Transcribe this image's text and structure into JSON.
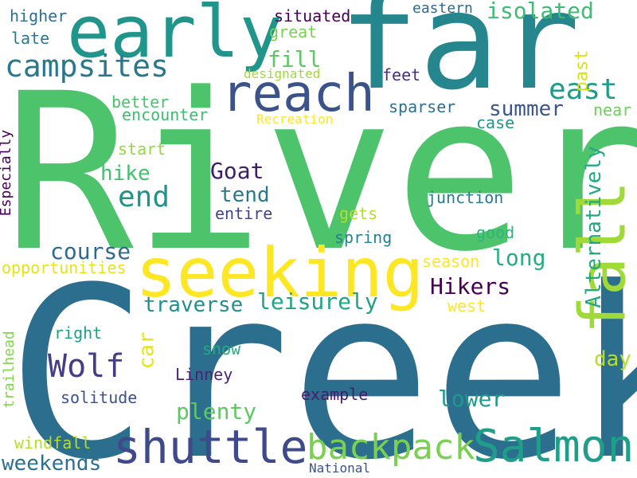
{
  "cloud": {
    "words": [
      {
        "text": "River",
        "color": "#4dc36b"
      },
      {
        "text": "Creek",
        "color": "#2c6e8e"
      },
      {
        "text": "far",
        "color": "#25878d"
      },
      {
        "text": "early",
        "color": "#1f958b"
      },
      {
        "text": "seeking",
        "color": "#fde725"
      },
      {
        "text": "reach",
        "color": "#3b528b"
      },
      {
        "text": "fall",
        "color": "#a0da39"
      },
      {
        "text": "campsites",
        "color": "#2a788e"
      },
      {
        "text": "shuttle",
        "color": "#3e4a89"
      },
      {
        "text": "Salmon",
        "color": "#1f9e89"
      },
      {
        "text": "backpack",
        "color": "#7ad151"
      },
      {
        "text": "east",
        "color": "#1e9c89"
      },
      {
        "text": "isolated",
        "color": "#3fbc73"
      },
      {
        "text": "end",
        "color": "#1f948c"
      },
      {
        "text": "Wolf",
        "color": "#433e85"
      },
      {
        "text": "Goat",
        "color": "#3b1f6b"
      },
      {
        "text": "Hikers",
        "color": "#440154"
      },
      {
        "text": "Alternatively",
        "color": "#22a884"
      },
      {
        "text": "leisurely",
        "color": "#20a486"
      },
      {
        "text": "traverse",
        "color": "#21908d"
      },
      {
        "text": "course",
        "color": "#306a8e"
      },
      {
        "text": "plenty",
        "color": "#5ec962"
      },
      {
        "text": "weekends",
        "color": "#2d708e"
      },
      {
        "text": "long",
        "color": "#27ad81"
      },
      {
        "text": "lower",
        "color": "#1f9a8a"
      },
      {
        "text": "fill",
        "color": "#5ac864"
      },
      {
        "text": "summer",
        "color": "#39558c"
      },
      {
        "text": "hike",
        "color": "#44bf70"
      },
      {
        "text": "tend",
        "color": "#2a788e"
      },
      {
        "text": "car",
        "color": "#e5e419"
      },
      {
        "text": "day",
        "color": "#b5de2b"
      },
      {
        "text": "past",
        "color": "#d8e219"
      },
      {
        "text": "higher",
        "color": "#2e6f8e"
      },
      {
        "text": "late",
        "color": "#2a788e"
      },
      {
        "text": "situated",
        "color": "#440154"
      },
      {
        "text": "great",
        "color": "#7ad151"
      },
      {
        "text": "eastern",
        "color": "#31688e"
      },
      {
        "text": "designated",
        "color": "#a0da39"
      },
      {
        "text": "feet",
        "color": "#472d7b"
      },
      {
        "text": "better",
        "color": "#4ac16d"
      },
      {
        "text": "encounter",
        "color": "#3dbc74"
      },
      {
        "text": "Recreation",
        "color": "#fde725"
      },
      {
        "text": "sparser",
        "color": "#2e6e8e"
      },
      {
        "text": "case",
        "color": "#1f948c"
      },
      {
        "text": "near",
        "color": "#6ece58"
      },
      {
        "text": "Especially",
        "color": "#440154"
      },
      {
        "text": "start",
        "color": "#95d840"
      },
      {
        "text": "junction",
        "color": "#287c8e"
      },
      {
        "text": "entire",
        "color": "#414487"
      },
      {
        "text": "gets",
        "color": "#b5de2b"
      },
      {
        "text": "spring",
        "color": "#26828e"
      },
      {
        "text": "good",
        "color": "#2fb47c"
      },
      {
        "text": "opportunities",
        "color": "#e5e419"
      },
      {
        "text": "season",
        "color": "#fde725"
      },
      {
        "text": "west",
        "color": "#fde725"
      },
      {
        "text": "right",
        "color": "#1f9e89"
      },
      {
        "text": "snow",
        "color": "#25ab82"
      },
      {
        "text": "Linney",
        "color": "#482374"
      },
      {
        "text": "trailhead",
        "color": "#84d44b"
      },
      {
        "text": "example",
        "color": "#481a6c"
      },
      {
        "text": "solitude",
        "color": "#3b528b"
      },
      {
        "text": "windfall",
        "color": "#b5de2b"
      },
      {
        "text": "National",
        "color": "#3b528b"
      }
    ]
  }
}
